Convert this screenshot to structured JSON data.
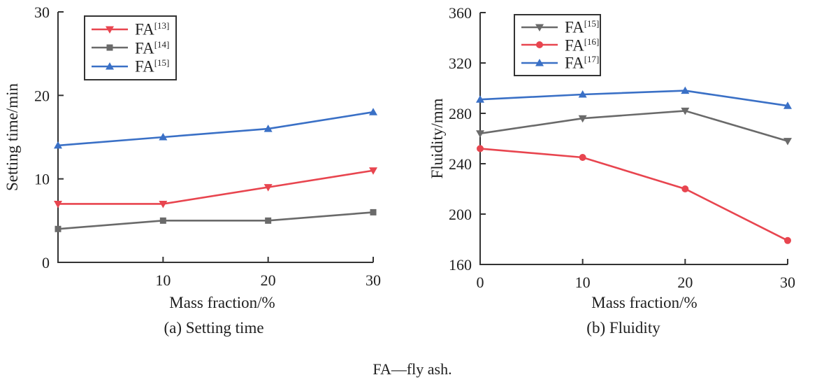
{
  "footnote": "FA—fly ash.",
  "colors": {
    "red": "#e8454f",
    "gray": "#6a6a6a",
    "blue": "#3a70c6",
    "axis": "#333333",
    "text": "#1f1f1f"
  },
  "chart_data": [
    {
      "type": "line",
      "title": "(a) Setting time",
      "xlabel": "Mass fraction/%",
      "ylabel": "Setting time/min",
      "x": [
        0,
        10,
        20,
        30
      ],
      "xticks": [
        10,
        20,
        30
      ],
      "xlim": [
        0,
        30
      ],
      "yticks": [
        0,
        10,
        20,
        30
      ],
      "ylim": [
        0,
        30
      ],
      "grid": false,
      "legend_position": "top-left-inside",
      "series": [
        {
          "name": "FA",
          "ref": "[13]",
          "color": "#e8454f",
          "marker": "triangle-down",
          "values": [
            7,
            7,
            9,
            11
          ]
        },
        {
          "name": "FA",
          "ref": "[14]",
          "color": "#6a6a6a",
          "marker": "square",
          "values": [
            4,
            5,
            5,
            6
          ]
        },
        {
          "name": "FA",
          "ref": "[15]",
          "color": "#3a70c6",
          "marker": "triangle-up",
          "values": [
            14,
            15,
            16,
            18
          ]
        }
      ]
    },
    {
      "type": "line",
      "title": "(b) Fluidity",
      "xlabel": "Mass fraction/%",
      "ylabel": "Fluidity/mm",
      "x": [
        0,
        10,
        20,
        30
      ],
      "xticks": [
        0,
        10,
        20,
        30
      ],
      "xlim": [
        0,
        30
      ],
      "yticks": [
        160,
        200,
        240,
        280,
        320,
        360
      ],
      "ylim": [
        160,
        360
      ],
      "grid": false,
      "legend_position": "top-left-inside",
      "series": [
        {
          "name": "FA",
          "ref": "[15]",
          "color": "#6a6a6a",
          "marker": "triangle-down",
          "values": [
            264,
            276,
            282,
            258
          ]
        },
        {
          "name": "FA",
          "ref": "[16]",
          "color": "#e8454f",
          "marker": "circle",
          "values": [
            252,
            245,
            220,
            179
          ]
        },
        {
          "name": "FA",
          "ref": "[17]",
          "color": "#3a70c6",
          "marker": "triangle-up",
          "values": [
            291,
            295,
            298,
            286
          ]
        }
      ]
    }
  ]
}
